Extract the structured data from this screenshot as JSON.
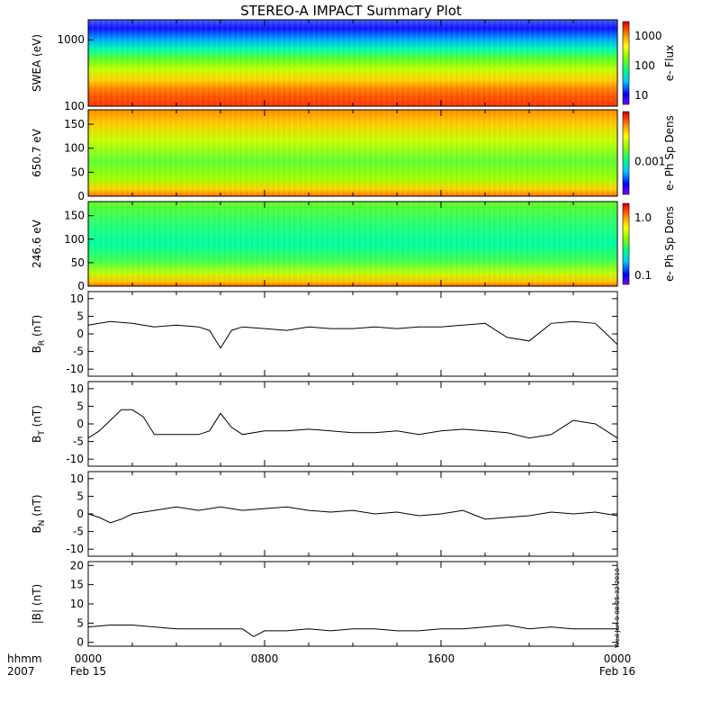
{
  "title": "STEREO-A IMPACT Summary Plot",
  "timestamp": "Wed Jun  9 08:25:32 2010",
  "x_axis": {
    "row_label": "hhmm",
    "year_label": "2007",
    "ticks": [
      {
        "hhmm": "0000",
        "date": "Feb 15"
      },
      {
        "hhmm": "0800",
        "date": ""
      },
      {
        "hhmm": "1600",
        "date": ""
      },
      {
        "hhmm": "0000",
        "date": "Feb 16"
      }
    ]
  },
  "colors": {
    "axes": "#000000",
    "line": "#000000",
    "colormap": [
      "#8000ff",
      "#0000ff",
      "#00c8ff",
      "#00ff80",
      "#80ff00",
      "#ffff00",
      "#ffa000",
      "#ff3000",
      "#c80000"
    ]
  },
  "chart_data": [
    {
      "type": "heatmap",
      "ylabel": "SWEA (eV)",
      "yscale": "log",
      "ylim": [
        100,
        2000
      ],
      "yticks": [
        "1000",
        "100"
      ],
      "colorbar": {
        "label": "e- Flux",
        "scale": "log",
        "ticks": [
          "1000",
          "100",
          "10"
        ]
      },
      "description_values": {
        "low_energy_level": 0.88,
        "high_energy_level": 0.1
      }
    },
    {
      "type": "heatmap",
      "ylabel": "650.7 eV",
      "ylim": [
        0,
        180
      ],
      "yticks": [
        "150",
        "100",
        "50",
        "0"
      ],
      "colorbar": {
        "label": "e- Ph Sp Dens",
        "scale": "log",
        "ticks": [
          "0.001"
        ]
      }
    },
    {
      "type": "heatmap",
      "ylabel": "246.6 eV",
      "ylim": [
        0,
        180
      ],
      "yticks": [
        "150",
        "100",
        "50",
        "0"
      ],
      "colorbar": {
        "label": "e- Ph Sp Dens",
        "scale": "log",
        "ticks": [
          "1.0",
          "0.1"
        ]
      }
    },
    {
      "type": "line",
      "ylabel_main": "B",
      "ylabel_sub": "R",
      "ylabel_unit": " (nT)",
      "ylim": [
        -12,
        12
      ],
      "yticks": [
        "10",
        "5",
        "0",
        "-5",
        "-10"
      ],
      "x_hours": [
        0,
        1,
        2,
        3,
        4,
        5,
        5.5,
        6,
        6.5,
        7,
        8,
        9,
        10,
        11,
        12,
        13,
        14,
        15,
        16,
        17,
        18,
        19,
        20,
        21,
        22,
        23,
        23.5,
        24
      ],
      "y": [
        2.5,
        3.5,
        3,
        2,
        2.5,
        2,
        1,
        -4,
        1,
        2,
        1.5,
        1,
        2,
        1.5,
        1.5,
        2,
        1.5,
        2,
        2,
        2.5,
        3,
        -1,
        -2,
        3,
        3.5,
        3,
        0,
        -3
      ]
    },
    {
      "type": "line",
      "ylabel_main": "B",
      "ylabel_sub": "T",
      "ylabel_unit": " (nT)",
      "ylim": [
        -12,
        12
      ],
      "yticks": [
        "10",
        "5",
        "0",
        "-5",
        "-10"
      ],
      "x_hours": [
        0,
        0.5,
        1,
        1.5,
        2,
        2.5,
        3,
        4,
        5,
        5.5,
        6,
        6.5,
        7,
        8,
        9,
        10,
        11,
        12,
        13,
        14,
        15,
        16,
        17,
        18,
        19,
        20,
        21,
        22,
        23,
        24
      ],
      "y": [
        -4,
        -2,
        1,
        4,
        4,
        2,
        -3,
        -3,
        -3,
        -2,
        3,
        -1,
        -3,
        -2,
        -2,
        -1.5,
        -2,
        -2.5,
        -2.5,
        -2,
        -3,
        -2,
        -1.5,
        -2,
        -2.5,
        -4,
        -3,
        1,
        0,
        -4
      ]
    },
    {
      "type": "line",
      "ylabel_main": "B",
      "ylabel_sub": "N",
      "ylabel_unit": " (nT)",
      "ylim": [
        -12,
        12
      ],
      "yticks": [
        "10",
        "5",
        "0",
        "-5",
        "-10"
      ],
      "x_hours": [
        0,
        0.5,
        1,
        1.5,
        2,
        3,
        4,
        5,
        6,
        7,
        8,
        9,
        10,
        11,
        12,
        13,
        14,
        15,
        16,
        17,
        18,
        19,
        20,
        21,
        22,
        23,
        24
      ],
      "y": [
        0,
        -1,
        -2.5,
        -1.5,
        0,
        1,
        2,
        1,
        2,
        1,
        1.5,
        2,
        1,
        0.5,
        1,
        0,
        0.5,
        -0.5,
        0,
        1,
        -1.5,
        -1,
        -0.5,
        0.5,
        0,
        0.5,
        -0.5
      ]
    },
    {
      "type": "line",
      "ylabel_main": "|B|",
      "ylabel_sub": "",
      "ylabel_unit": " (nT)",
      "ylim": [
        -1,
        21
      ],
      "yticks": [
        "20",
        "15",
        "10",
        "5",
        "0"
      ],
      "x_hours": [
        0,
        1,
        2,
        3,
        4,
        5,
        6,
        7,
        7.5,
        8,
        9,
        10,
        11,
        12,
        13,
        14,
        15,
        16,
        17,
        18,
        19,
        20,
        21,
        22,
        23,
        24
      ],
      "y": [
        4,
        4.5,
        4.5,
        4,
        3.5,
        3.5,
        3.5,
        3.5,
        1.5,
        3,
        3,
        3.5,
        3,
        3.5,
        3.5,
        3,
        3,
        3.5,
        3.5,
        4,
        4.5,
        3.5,
        4,
        3.5,
        3.5,
        3.5
      ]
    }
  ]
}
